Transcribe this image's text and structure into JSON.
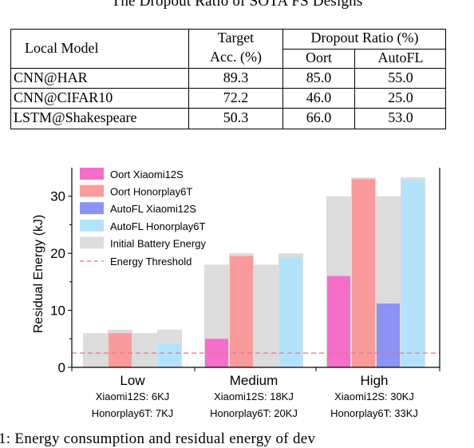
{
  "table": {
    "caption": "The Dropout Ratio of SOTA FS Designs",
    "headers": {
      "local_model": "Local Model",
      "target_line1": "Target",
      "target_line2": "Acc. (%)",
      "dropout_ratio": "Dropout Ratio (%)",
      "oort": "Oort",
      "autofl": "AutoFL"
    },
    "rows": [
      {
        "model": "CNN@HAR",
        "target": "89.3",
        "oort": "85.0",
        "autofl": "55.0"
      },
      {
        "model": "CNN@CIFAR10",
        "target": "72.2",
        "oort": "46.0",
        "autofl": "25.0"
      },
      {
        "model": "LSTM@Shakespeare",
        "target": "50.3",
        "oort": "66.0",
        "autofl": "53.0"
      }
    ]
  },
  "chart_data": {
    "type": "bar",
    "ylabel": "Residual Energy (kJ)",
    "ylim": [
      0,
      35
    ],
    "yticks": [
      0,
      10,
      20,
      30
    ],
    "categories": [
      "Low",
      "Medium",
      "High"
    ],
    "category_sublabels": [
      [
        "Xiaomi12S: 6KJ",
        "Honorplay6T: 7KJ"
      ],
      [
        "Xiaomi12S: 18KJ",
        "Honorplay6T: 20KJ"
      ],
      [
        "Xiaomi12S: 30KJ",
        "Honorplay6T: 33KJ"
      ]
    ],
    "series": [
      {
        "name": "Oort Xiaomi12S",
        "color": "#f36fc8",
        "values": [
          0,
          5,
          16
        ]
      },
      {
        "name": "Oort Honorplay6T",
        "color": "#f99b9b",
        "values": [
          6,
          19.5,
          33
        ]
      },
      {
        "name": "AutoFL Xiaomi12S",
        "color": "#8b93f3",
        "values": [
          0,
          0,
          11.2
        ]
      },
      {
        "name": "AutoFL Honorplay6T",
        "color": "#b3e3fb",
        "values": [
          4.1,
          19.3,
          32.8
        ]
      }
    ],
    "initial_battery": {
      "name": "Initial Battery Energy",
      "color": "#dcdcdc",
      "values": [
        [
          6,
          6.6,
          6,
          6.6
        ],
        [
          18,
          20,
          18,
          20
        ],
        [
          30,
          33.3,
          30,
          33.3
        ]
      ]
    },
    "threshold": {
      "name": "Energy Threshold",
      "value": 2.5,
      "color": "#f07080"
    },
    "legend_position": "top-left"
  },
  "figure": {
    "caption": "1: Energy consumption and residual energy of dev"
  }
}
